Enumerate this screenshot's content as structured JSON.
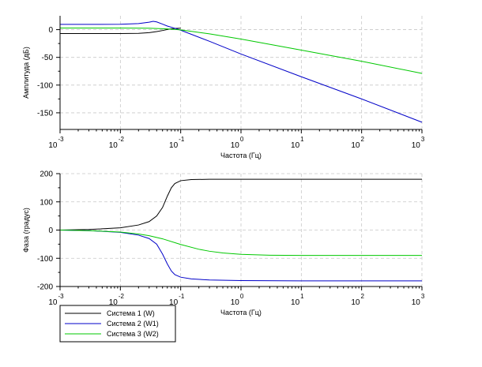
{
  "chart_data": [
    {
      "type": "line",
      "title": "",
      "xlabel": "Частота (Гц)",
      "ylabel": "Амплитуда (дБ)",
      "xscale": "log",
      "xlim": [
        0.001,
        1000
      ],
      "ylim": [
        -180,
        25
      ],
      "grid": true,
      "x_ticks": [
        {
          "base": "10",
          "exp": "-3"
        },
        {
          "base": "10",
          "exp": "-2"
        },
        {
          "base": "10",
          "exp": "-1"
        },
        {
          "base": "10",
          "exp": "0"
        },
        {
          "base": "10",
          "exp": "1"
        },
        {
          "base": "10",
          "exp": "2"
        },
        {
          "base": "10",
          "exp": "3"
        }
      ],
      "y_ticks": [
        "0",
        "-50",
        "-100",
        "-150"
      ],
      "series": [
        {
          "name": "Система 1 (W)",
          "color": "#000000",
          "x": [
            0.001,
            0.003,
            0.01,
            0.02,
            0.03,
            0.04,
            0.05,
            0.06,
            0.07,
            0.08,
            0.1
          ],
          "y": [
            -7,
            -7,
            -7,
            -6.6,
            -5.5,
            -3.5,
            -1.6,
            0.2,
            1.5,
            2.3,
            2.5
          ]
        },
        {
          "name": "Система 2 (W1)",
          "color": "#0000c8",
          "x": [
            0.001,
            0.003,
            0.01,
            0.02,
            0.03,
            0.035,
            0.04,
            0.05,
            0.06,
            0.08,
            0.1,
            0.3,
            1,
            10,
            100,
            1000
          ],
          "y": [
            9.5,
            9.5,
            9.7,
            11,
            13.5,
            15,
            14,
            10,
            6.5,
            2.5,
            -1,
            -21,
            -44,
            -85,
            -125,
            -167
          ]
        },
        {
          "name": "Система 3 (W2)",
          "color": "#00c800",
          "x": [
            0.001,
            0.01,
            0.03,
            0.06,
            0.1,
            0.3,
            1,
            10,
            100,
            1000
          ],
          "y": [
            3,
            3,
            2.5,
            1.4,
            -0.5,
            -7.5,
            -17,
            -37,
            -57,
            -79
          ]
        }
      ]
    },
    {
      "type": "line",
      "title": "",
      "xlabel": "Частота (Гц)",
      "ylabel": "Фаза (градус)",
      "xscale": "log",
      "xlim": [
        0.001,
        1000
      ],
      "ylim": [
        -200,
        200
      ],
      "grid": true,
      "x_ticks": [
        {
          "base": "10",
          "exp": "-3"
        },
        {
          "base": "10",
          "exp": "-2"
        },
        {
          "base": "10",
          "exp": "-1"
        },
        {
          "base": "10",
          "exp": "0"
        },
        {
          "base": "10",
          "exp": "1"
        },
        {
          "base": "10",
          "exp": "2"
        },
        {
          "base": "10",
          "exp": "3"
        }
      ],
      "y_ticks": [
        "200",
        "100",
        "0",
        "-100",
        "-200"
      ],
      "series": [
        {
          "name": "Система 1 (W)",
          "color": "#000000",
          "x": [
            0.001,
            0.003,
            0.01,
            0.02,
            0.03,
            0.04,
            0.05,
            0.06,
            0.07,
            0.08,
            0.1,
            0.15,
            0.3,
            1,
            10,
            100,
            1000
          ],
          "y": [
            0,
            2,
            8,
            18,
            30,
            50,
            80,
            120,
            150,
            165,
            175,
            179,
            180,
            180,
            180,
            180,
            180
          ]
        },
        {
          "name": "Система 2 (W1)",
          "color": "#0000c8",
          "x": [
            0.001,
            0.003,
            0.01,
            0.02,
            0.03,
            0.04,
            0.05,
            0.06,
            0.07,
            0.08,
            0.1,
            0.15,
            0.3,
            1,
            10,
            100,
            1000
          ],
          "y": [
            0,
            -2,
            -8,
            -18,
            -30,
            -50,
            -85,
            -120,
            -145,
            -158,
            -167,
            -173,
            -177,
            -179,
            -180,
            -180,
            -180
          ]
        },
        {
          "name": "Система 3 (W2)",
          "color": "#00c800",
          "x": [
            0.001,
            0.003,
            0.01,
            0.02,
            0.03,
            0.05,
            0.1,
            0.2,
            0.3,
            0.5,
            1,
            3,
            10,
            100,
            1000
          ],
          "y": [
            0,
            -2,
            -7,
            -14,
            -20,
            -31,
            -51,
            -68,
            -75,
            -81,
            -86,
            -89,
            -90,
            -90,
            -90
          ]
        }
      ]
    }
  ],
  "legend": {
    "position": "bottom-left",
    "entries": [
      {
        "label": "Система 1 (W)",
        "color": "#000000"
      },
      {
        "label": "Система 2 (W1)",
        "color": "#0000c8"
      },
      {
        "label": "Система 3 (W2)",
        "color": "#00c800"
      }
    ]
  }
}
